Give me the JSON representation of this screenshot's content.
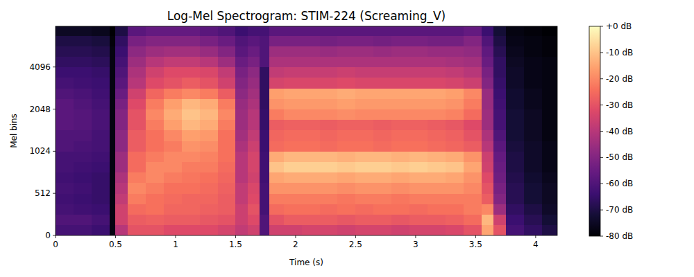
{
  "chart_data": {
    "type": "heatmap",
    "title": "Log-Mel Spectrogram: STIM-224 (Screaming_V)",
    "x_label": "Time (s)",
    "y_label": "Mel bins",
    "log": "y",
    "xlim": [
      0,
      4.18
    ],
    "ylim": [
      0,
      8000
    ],
    "xticks": [
      0,
      0.5,
      1,
      1.5,
      2,
      2.5,
      3,
      3.5,
      4
    ],
    "yticks": [
      0,
      512,
      1024,
      2048,
      4096
    ],
    "x_edges": [
      0,
      0.15,
      0.3,
      0.45,
      0.5,
      0.6,
      0.75,
      0.9,
      1.05,
      1.2,
      1.35,
      1.5,
      1.6,
      1.7,
      1.78,
      1.9,
      2.05,
      2.2,
      2.35,
      2.5,
      2.65,
      2.8,
      2.95,
      3.1,
      3.25,
      3.4,
      3.55,
      3.65,
      3.75,
      3.9,
      4.05,
      4.18
    ],
    "y_edges": [
      0,
      128,
      256,
      384,
      512,
      609,
      724,
      861,
      1024,
      1218,
      1448,
      1722,
      2048,
      2435,
      2896,
      3444,
      4096,
      4871,
      5793,
      6889,
      8000
    ],
    "cells": [
      [
        -62,
        -62,
        -64,
        -78,
        -40,
        -30,
        -30,
        -32,
        -32,
        -32,
        -34,
        -38,
        -35,
        -60,
        -35,
        -35,
        -34,
        -34,
        -35,
        -34,
        -34,
        -35,
        -34,
        -34,
        -33,
        -30,
        -15,
        -30,
        -62,
        -66,
        -70
      ],
      [
        -60,
        -60,
        -62,
        -78,
        -35,
        -28,
        -27,
        -28,
        -28,
        -29,
        -30,
        -36,
        -32,
        -60,
        -30,
        -28,
        -28,
        -28,
        -29,
        -28,
        -28,
        -29,
        -28,
        -28,
        -27,
        -25,
        -12,
        -35,
        -64,
        -68,
        -72
      ],
      [
        -62,
        -63,
        -64,
        -78,
        -35,
        -25,
        -24,
        -26,
        -26,
        -27,
        -28,
        -36,
        -30,
        -62,
        -25,
        -24,
        -24,
        -25,
        -24,
        -25,
        -24,
        -24,
        -25,
        -24,
        -24,
        -22,
        -20,
        -45,
        -66,
        -70,
        -74
      ],
      [
        -63,
        -64,
        -65,
        -78,
        -38,
        -22,
        -24,
        -25,
        -26,
        -26,
        -28,
        -38,
        -32,
        -62,
        -22,
        -22,
        -22,
        -22,
        -23,
        -22,
        -22,
        -23,
        -22,
        -22,
        -22,
        -22,
        -28,
        -50,
        -68,
        -72,
        -75
      ],
      [
        -62,
        -63,
        -65,
        -78,
        -40,
        -20,
        -22,
        -24,
        -24,
        -25,
        -27,
        -38,
        -33,
        -62,
        -18,
        -18,
        -18,
        -18,
        -19,
        -18,
        -18,
        -19,
        -18,
        -18,
        -18,
        -20,
        -30,
        -52,
        -68,
        -72,
        -75
      ],
      [
        -63,
        -64,
        -65,
        -78,
        -42,
        -22,
        -20,
        -22,
        -23,
        -24,
        -26,
        -40,
        -35,
        -63,
        -15,
        -14,
        -14,
        -14,
        -15,
        -14,
        -14,
        -15,
        -14,
        -14,
        -15,
        -18,
        -32,
        -54,
        -69,
        -73,
        -76
      ],
      [
        -62,
        -63,
        -64,
        -78,
        -45,
        -25,
        -20,
        -20,
        -22,
        -22,
        -25,
        -40,
        -34,
        -63,
        -10,
        -8,
        -8,
        -8,
        -9,
        -8,
        -8,
        -9,
        -8,
        -9,
        -10,
        -15,
        -35,
        -55,
        -70,
        -74,
        -77
      ],
      [
        -62,
        -62,
        -63,
        -78,
        -45,
        -25,
        -22,
        -20,
        -20,
        -21,
        -24,
        -40,
        -34,
        -63,
        -14,
        -12,
        -12,
        -12,
        -13,
        -12,
        -12,
        -13,
        -12,
        -13,
        -14,
        -18,
        -36,
        -56,
        -70,
        -74,
        -77
      ],
      [
        -60,
        -61,
        -62,
        -78,
        -48,
        -28,
        -24,
        -22,
        -18,
        -19,
        -24,
        -42,
        -36,
        -64,
        -25,
        -24,
        -24,
        -25,
        -24,
        -24,
        -25,
        -24,
        -24,
        -25,
        -26,
        -28,
        -40,
        -58,
        -71,
        -74,
        -77
      ],
      [
        -60,
        -60,
        -62,
        -78,
        -48,
        -28,
        -24,
        -20,
        -16,
        -17,
        -24,
        -44,
        -38,
        -64,
        -26,
        -25,
        -25,
        -26,
        -25,
        -25,
        -26,
        -25,
        -25,
        -26,
        -27,
        -30,
        -42,
        -60,
        -72,
        -75,
        -78
      ],
      [
        -58,
        -59,
        -61,
        -78,
        -50,
        -30,
        -22,
        -16,
        -12,
        -14,
        -22,
        -45,
        -40,
        -65,
        -28,
        -27,
        -27,
        -28,
        -27,
        -27,
        -28,
        -27,
        -27,
        -28,
        -29,
        -32,
        -45,
        -62,
        -72,
        -75,
        -78
      ],
      [
        -58,
        -59,
        -61,
        -78,
        -50,
        -30,
        -20,
        -14,
        -10,
        -12,
        -20,
        -45,
        -40,
        -65,
        -22,
        -20,
        -20,
        -20,
        -19,
        -20,
        -20,
        -20,
        -20,
        -20,
        -21,
        -25,
        -45,
        -62,
        -72,
        -75,
        -78
      ],
      [
        -58,
        -60,
        -62,
        -78,
        -52,
        -32,
        -22,
        -16,
        -12,
        -14,
        -22,
        -46,
        -42,
        -66,
        -18,
        -17,
        -17,
        -17,
        -16,
        -17,
        -17,
        -17,
        -17,
        -17,
        -18,
        -22,
        -46,
        -63,
        -73,
        -76,
        -78
      ],
      [
        -60,
        -61,
        -63,
        -78,
        -55,
        -35,
        -26,
        -22,
        -20,
        -22,
        -28,
        -48,
        -44,
        -66,
        -16,
        -15,
        -15,
        -15,
        -14,
        -15,
        -15,
        -15,
        -15,
        -15,
        -16,
        -20,
        -46,
        -64,
        -73,
        -76,
        -78
      ],
      [
        -62,
        -63,
        -64,
        -78,
        -58,
        -40,
        -32,
        -30,
        -28,
        -30,
        -35,
        -50,
        -46,
        -66,
        -34,
        -33,
        -33,
        -33,
        -32,
        -33,
        -33,
        -33,
        -33,
        -33,
        -34,
        -36,
        -50,
        -65,
        -74,
        -77,
        -78
      ],
      [
        -64,
        -64,
        -65,
        -78,
        -60,
        -42,
        -35,
        -32,
        -32,
        -33,
        -38,
        -52,
        -48,
        -66,
        -38,
        -37,
        -37,
        -37,
        -36,
        -37,
        -37,
        -37,
        -37,
        -37,
        -38,
        -40,
        -52,
        -66,
        -74,
        -77,
        -78
      ],
      [
        -66,
        -66,
        -67,
        -78,
        -62,
        -45,
        -40,
        -38,
        -38,
        -40,
        -45,
        -55,
        -52,
        -60,
        -42,
        -42,
        -42,
        -42,
        -42,
        -42,
        -42,
        -42,
        -42,
        -42,
        -43,
        -44,
        -55,
        -66,
        -75,
        -77,
        -78
      ],
      [
        -68,
        -68,
        -69,
        -78,
        -64,
        -48,
        -45,
        -44,
        -44,
        -46,
        -50,
        -58,
        -55,
        -60,
        -45,
        -45,
        -45,
        -46,
        -45,
        -45,
        -46,
        -45,
        -45,
        -46,
        -46,
        -47,
        -57,
        -68,
        -76,
        -78,
        -79
      ],
      [
        -70,
        -70,
        -71,
        -79,
        -66,
        -52,
        -50,
        -50,
        -50,
        -52,
        -55,
        -60,
        -58,
        -60,
        -52,
        -52,
        -52,
        -53,
        -52,
        -52,
        -53,
        -52,
        -52,
        -53,
        -53,
        -50,
        -60,
        -70,
        -77,
        -78,
        -79
      ],
      [
        -75,
        -75,
        -76,
        -80,
        -70,
        -58,
        -56,
        -56,
        -56,
        -58,
        -60,
        -64,
        -62,
        -62,
        -58,
        -58,
        -58,
        -58,
        -58,
        -58,
        -58,
        -58,
        -58,
        -58,
        -58,
        -56,
        -64,
        -72,
        -78,
        -79,
        -80
      ]
    ],
    "colorbar": {
      "range": [
        -80,
        0
      ],
      "ticks": [
        {
          "value": 0,
          "label": "+0 dB"
        },
        {
          "value": -10,
          "label": "-10 dB"
        },
        {
          "value": -20,
          "label": "-20 dB"
        },
        {
          "value": -30,
          "label": "-30 dB"
        },
        {
          "value": -40,
          "label": "-40 dB"
        },
        {
          "value": -50,
          "label": "-50 dB"
        },
        {
          "value": -60,
          "label": "-60 dB"
        },
        {
          "value": -70,
          "label": "-70 dB"
        },
        {
          "value": -80,
          "label": "-80 dB"
        }
      ]
    }
  }
}
